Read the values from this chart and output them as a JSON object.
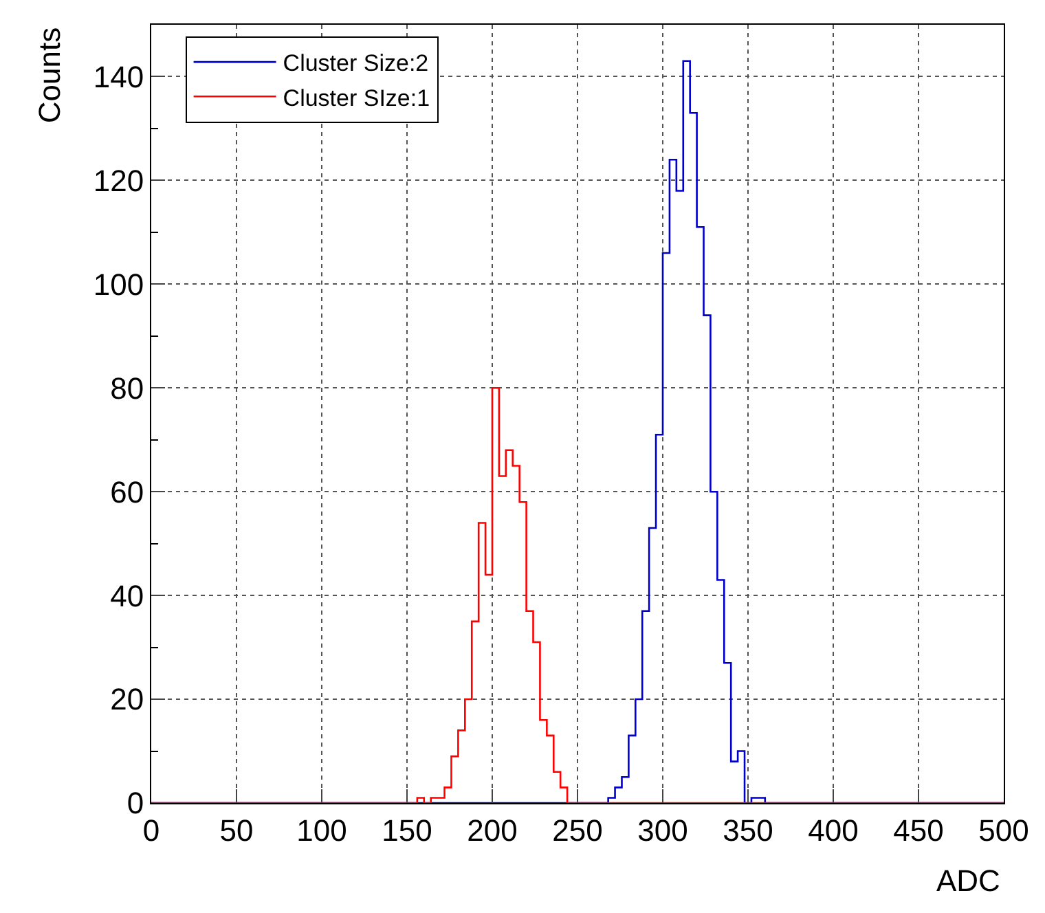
{
  "chart_data": {
    "type": "histogram",
    "xlabel": "ADC",
    "ylabel": "Counts",
    "bins": [
      0,
      4,
      8,
      12,
      16,
      20,
      24,
      28,
      32,
      36,
      40,
      44,
      48,
      52,
      56,
      60,
      64,
      68,
      72,
      76,
      80,
      84,
      88,
      92,
      96,
      100,
      104,
      108,
      112,
      116,
      120,
      124,
      128,
      132,
      136,
      140,
      144,
      148,
      152,
      156,
      160,
      164,
      168,
      172,
      176,
      180,
      184,
      188,
      192,
      196,
      200,
      204,
      208,
      212,
      216,
      220,
      224,
      228,
      232,
      236,
      240,
      244,
      248,
      252,
      256,
      260,
      264,
      268,
      272,
      276,
      280,
      284,
      288,
      292,
      296,
      300,
      304,
      308,
      312,
      316,
      320,
      324,
      328,
      332,
      336,
      340,
      344,
      348,
      352,
      356,
      360,
      364,
      368,
      372,
      376,
      380,
      384,
      388,
      392,
      396,
      400,
      404,
      408,
      412,
      416,
      420,
      424,
      428,
      432,
      436,
      440,
      444,
      448,
      452,
      456,
      460,
      464,
      468,
      472,
      476,
      480,
      484,
      488,
      492,
      496,
      500
    ],
    "series": [
      {
        "name": "Cluster Size:2",
        "color": "#0000cc",
        "values": [
          0,
          0,
          0,
          0,
          0,
          0,
          0,
          0,
          0,
          0,
          0,
          0,
          0,
          0,
          0,
          0,
          0,
          0,
          0,
          0,
          0,
          0,
          0,
          0,
          0,
          0,
          0,
          0,
          0,
          0,
          0,
          0,
          0,
          0,
          0,
          0,
          0,
          0,
          0,
          0,
          0,
          0,
          0,
          0,
          0,
          0,
          0,
          0,
          0,
          0,
          0,
          0,
          0,
          0,
          0,
          0,
          0,
          0,
          0,
          0,
          0,
          0,
          0,
          0,
          0,
          0,
          0,
          1,
          3,
          5,
          13,
          20,
          37,
          53,
          71,
          106,
          124,
          118,
          143,
          133,
          111,
          94,
          60,
          43,
          27,
          8,
          10,
          0,
          1,
          1,
          0,
          0,
          0,
          0,
          0,
          0,
          0,
          0,
          0,
          0,
          0,
          0,
          0,
          0,
          0,
          0,
          0,
          0,
          0,
          0,
          0,
          0,
          0,
          0,
          0,
          0,
          0,
          0,
          0,
          0,
          0,
          0,
          0,
          0,
          0
        ]
      },
      {
        "name": "Cluster SIze:1",
        "color": "#ff0000",
        "values": [
          0,
          0,
          0,
          0,
          0,
          0,
          0,
          0,
          0,
          0,
          0,
          0,
          0,
          0,
          0,
          0,
          0,
          0,
          0,
          0,
          0,
          0,
          0,
          0,
          0,
          0,
          0,
          0,
          0,
          0,
          0,
          0,
          0,
          0,
          0,
          0,
          0,
          0,
          0,
          1,
          0,
          1,
          1,
          3,
          9,
          14,
          20,
          35,
          54,
          44,
          80,
          63,
          68,
          65,
          58,
          37,
          31,
          16,
          13,
          6,
          3,
          0,
          0,
          0,
          0,
          0,
          0,
          0,
          0,
          0,
          0,
          0,
          0,
          0,
          0,
          0,
          0,
          0,
          0,
          0,
          0,
          0,
          0,
          0,
          0,
          0,
          0,
          0,
          0,
          0,
          0,
          0,
          0,
          0,
          0,
          0,
          0,
          0,
          0,
          0,
          0,
          0,
          0,
          0,
          0,
          0,
          0,
          0,
          0,
          0,
          0,
          0,
          0,
          0,
          0,
          0,
          0,
          0,
          0,
          0,
          0,
          0,
          0,
          0,
          0
        ]
      }
    ],
    "xlim": [
      0,
      500
    ],
    "xticks": [
      0,
      50,
      100,
      150,
      200,
      250,
      300,
      350,
      400,
      450,
      500
    ],
    "ylim": [
      0,
      150
    ],
    "yticks": [
      0,
      20,
      40,
      60,
      80,
      100,
      120,
      140
    ],
    "grid": true,
    "legend": "top left",
    "line_style": "solid"
  }
}
